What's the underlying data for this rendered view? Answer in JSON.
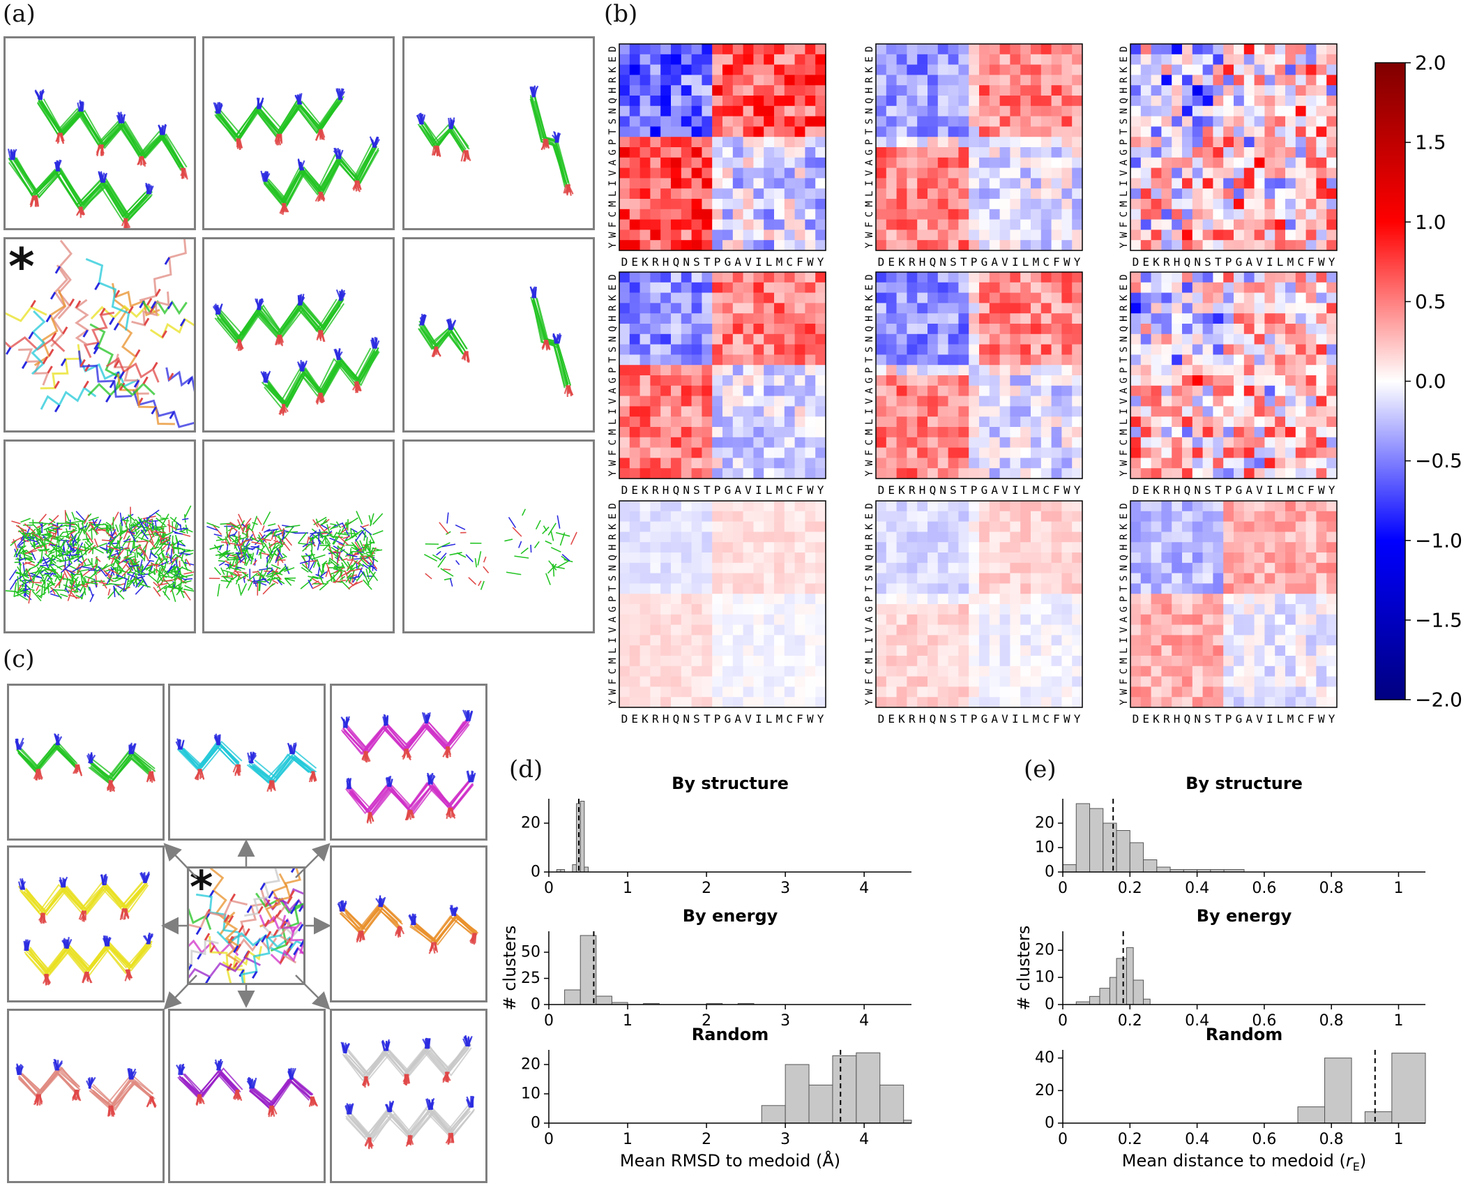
{
  "labels": {
    "a": "(a)",
    "b": "(b)",
    "c": "(c)",
    "d": "(d)",
    "e": "(e)"
  },
  "star": "*",
  "colors": {
    "green": "#22c322",
    "red": "#e04848",
    "blue": "#2a2ae0",
    "cyan": "#22c8d8",
    "magenta": "#d030c8",
    "yellow": "#e8e020",
    "orange": "#e8902a",
    "salmon": "#e08a80",
    "purple": "#9a20c8",
    "gray": "#c8c8c8",
    "frame": "#7f7f7f",
    "hist": "#c8c8c8"
  },
  "amino_acids": [
    "D",
    "E",
    "K",
    "R",
    "H",
    "Q",
    "N",
    "S",
    "T",
    "P",
    "G",
    "A",
    "V",
    "I",
    "L",
    "M",
    "C",
    "F",
    "W",
    "Y"
  ],
  "colorbar": {
    "ticks": [
      "2.0",
      "1.5",
      "1.0",
      "0.5",
      "0.0",
      "−0.5",
      "−1.0",
      "−1.5",
      "−2.0"
    ],
    "min": -2.0,
    "max": 2.0,
    "colormap": "seismic"
  },
  "panel_a_structures": [
    [
      "peptide-pair",
      "peptide-pair",
      "peptide-pair-small"
    ],
    [
      "ensemble-cluster",
      "peptide-pair",
      "peptide-pair-small"
    ],
    [
      "random-sticks",
      "random-sticks",
      "random-sticks-sparse"
    ]
  ],
  "panel_c_structures": [
    "green",
    "cyan",
    "magenta",
    "yellow",
    "center-ensemble",
    "orange",
    "salmon",
    "purple",
    "gray"
  ],
  "chart_data": [
    {
      "type": "bar",
      "panel": "d",
      "title": "By structure",
      "ylabel": "",
      "xlabel": "",
      "xlim": [
        0,
        4.6
      ],
      "ylim": [
        0,
        30
      ],
      "yticks": [
        0,
        20
      ],
      "xticks": [
        0,
        1,
        2,
        3,
        4
      ],
      "bins": [
        [
          0.1,
          0.15,
          1
        ],
        [
          0.15,
          0.2,
          1
        ],
        [
          0.3,
          0.35,
          3
        ],
        [
          0.35,
          0.4,
          28
        ],
        [
          0.4,
          0.45,
          29
        ],
        [
          0.45,
          0.5,
          2
        ]
      ],
      "mean": 0.38
    },
    {
      "type": "bar",
      "panel": "d",
      "title": "By energy",
      "ylabel": "# clusters",
      "xlabel": "",
      "xlim": [
        0,
        4.6
      ],
      "ylim": [
        0,
        70
      ],
      "yticks": [
        0,
        25,
        50
      ],
      "xticks": [
        0,
        1,
        2,
        3,
        4
      ],
      "bins": [
        [
          0.2,
          0.4,
          14
        ],
        [
          0.4,
          0.6,
          66
        ],
        [
          0.6,
          0.8,
          8
        ],
        [
          0.8,
          1.0,
          2
        ],
        [
          1.2,
          1.4,
          1
        ],
        [
          2.0,
          2.2,
          1
        ],
        [
          2.4,
          2.6,
          1
        ]
      ],
      "mean": 0.57
    },
    {
      "type": "bar",
      "panel": "d",
      "title": "Random",
      "ylabel": "",
      "xlabel": "Mean RMSD to medoid (Å)",
      "xlim": [
        0,
        4.6
      ],
      "ylim": [
        0,
        25
      ],
      "yticks": [
        0,
        10,
        20
      ],
      "xticks": [
        0,
        1,
        2,
        3,
        4
      ],
      "bins": [
        [
          2.7,
          3.0,
          6
        ],
        [
          3.0,
          3.3,
          20
        ],
        [
          3.3,
          3.6,
          13
        ],
        [
          3.6,
          3.9,
          23
        ],
        [
          3.9,
          4.2,
          24
        ],
        [
          4.2,
          4.5,
          13
        ],
        [
          4.5,
          4.6,
          1
        ]
      ],
      "mean": 3.7
    },
    {
      "type": "bar",
      "panel": "e",
      "title": "By structure",
      "ylabel": "",
      "xlabel": "",
      "xlim": [
        0,
        1.08
      ],
      "ylim": [
        0,
        30
      ],
      "yticks": [
        0,
        10,
        20
      ],
      "xticks": [
        0,
        0.2,
        0.4,
        0.6,
        0.8,
        1
      ],
      "bins": [
        [
          0.0,
          0.04,
          3
        ],
        [
          0.04,
          0.08,
          28
        ],
        [
          0.08,
          0.12,
          26
        ],
        [
          0.12,
          0.16,
          20
        ],
        [
          0.16,
          0.2,
          17
        ],
        [
          0.2,
          0.24,
          12
        ],
        [
          0.24,
          0.28,
          5
        ],
        [
          0.28,
          0.32,
          2
        ],
        [
          0.32,
          0.36,
          1
        ],
        [
          0.36,
          0.4,
          1
        ],
        [
          0.4,
          0.44,
          1
        ],
        [
          0.44,
          0.48,
          1
        ],
        [
          0.48,
          0.54,
          1
        ]
      ],
      "mean": 0.15
    },
    {
      "type": "bar",
      "panel": "e",
      "title": "By energy",
      "ylabel": "# clusters",
      "xlabel": "",
      "xlim": [
        0,
        1.08
      ],
      "ylim": [
        0,
        27
      ],
      "yticks": [
        0,
        10,
        20
      ],
      "xticks": [
        0,
        0.2,
        0.4,
        0.6,
        0.8,
        1
      ],
      "bins": [
        [
          0.04,
          0.08,
          1
        ],
        [
          0.08,
          0.11,
          3
        ],
        [
          0.11,
          0.14,
          6
        ],
        [
          0.14,
          0.16,
          10
        ],
        [
          0.16,
          0.19,
          17
        ],
        [
          0.19,
          0.21,
          21
        ],
        [
          0.21,
          0.24,
          9
        ],
        [
          0.24,
          0.26,
          2
        ]
      ],
      "mean": 0.18
    },
    {
      "type": "bar",
      "panel": "e",
      "title": "Random",
      "ylabel": "",
      "xlabel": "Mean distance to medoid (r_E)",
      "xlim": [
        0,
        1.08
      ],
      "ylim": [
        0,
        45
      ],
      "yticks": [
        0,
        20,
        40
      ],
      "xticks": [
        0,
        0.2,
        0.4,
        0.6,
        0.8,
        1
      ],
      "bins": [
        [
          0.7,
          0.78,
          10
        ],
        [
          0.78,
          0.86,
          40
        ],
        [
          0.86,
          0.9,
          0
        ],
        [
          0.9,
          0.98,
          7
        ],
        [
          0.98,
          1.08,
          43
        ]
      ],
      "mean": 0.93
    }
  ],
  "axis_text": {
    "d_xlabel": "Mean RMSD to medoid (Å)",
    "e_xlabel_main": "Mean distance to medoid (",
    "e_xlabel_sym": "r",
    "e_xlabel_sub": "E",
    "e_xlabel_end": ")",
    "ylabel": "# clusters"
  }
}
